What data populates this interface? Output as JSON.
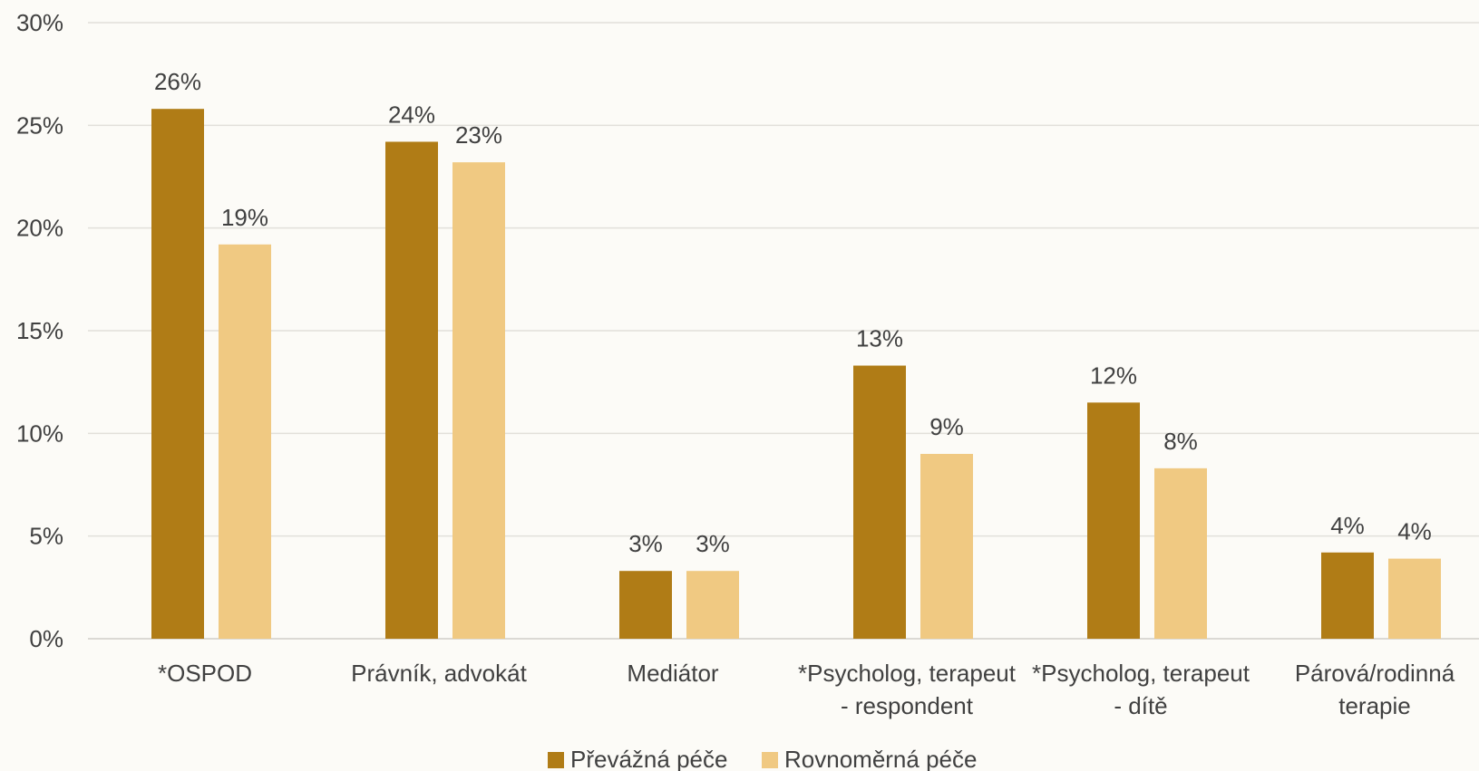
{
  "chart_data": {
    "type": "bar",
    "categories": [
      [
        "*OSPOD"
      ],
      [
        "Právník, advokát"
      ],
      [
        "Mediátor"
      ],
      [
        "*Psycholog, terapeut",
        "- respondent"
      ],
      [
        "*Psycholog, terapeut",
        "- dítě"
      ],
      [
        "Párová/rodinná",
        "terapie"
      ]
    ],
    "series": [
      {
        "name": "Převážná péče",
        "color": "#b07c16",
        "values": [
          25.8,
          24.2,
          3.3,
          13.3,
          11.5,
          4.2
        ],
        "labels": [
          "26%",
          "24%",
          "3%",
          "13%",
          "12%",
          "4%"
        ]
      },
      {
        "name": "Rovnoměrná péče",
        "color": "#f0c982",
        "values": [
          19.2,
          23.2,
          3.3,
          9.0,
          8.3,
          3.9
        ],
        "labels": [
          "19%",
          "23%",
          "3%",
          "9%",
          "8%",
          "4%"
        ]
      }
    ],
    "yticks": [
      "0%",
      "5%",
      "10%",
      "15%",
      "20%",
      "25%",
      "30%"
    ],
    "ylim": [
      0,
      30
    ],
    "grid": true,
    "legend": "bottom"
  }
}
